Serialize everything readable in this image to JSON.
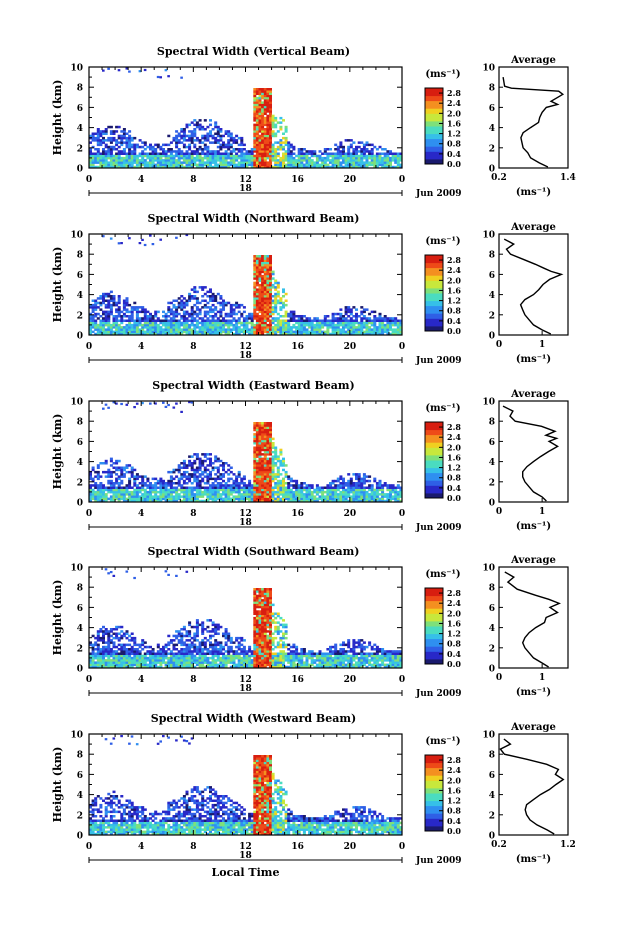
{
  "chart_data": [
    {
      "type": "heatmap",
      "title": "Spectral Width (Vertical Beam)",
      "xlabel": "",
      "ylabel": "Height (km)",
      "x_ticks": [
        "0",
        "4",
        "8",
        "12",
        "16",
        "20",
        "0"
      ],
      "y_ticks": [
        "0",
        "2",
        "4",
        "6",
        "8",
        "10"
      ],
      "xlim": [
        0,
        24
      ],
      "ylim": [
        0,
        10
      ],
      "date_label": "Jun 2009",
      "day_label": "18",
      "colorbar": {
        "unit": "(ms⁻¹)",
        "ticks": [
          "0.0",
          "0.4",
          "0.8",
          "1.2",
          "1.6",
          "2.0",
          "2.4",
          "2.8"
        ],
        "range": [
          0,
          3
        ]
      },
      "average_profile": {
        "title": "Average",
        "xlabel": "(ms⁻¹)",
        "x_ticks": [
          "0.2",
          "1.4"
        ],
        "xlim": [
          0.2,
          1.4
        ],
        "y_ticks": [
          "0",
          "2",
          "4",
          "6",
          "8",
          "10"
        ],
        "points": [
          [
            1.05,
            0.1
          ],
          [
            0.9,
            0.5
          ],
          [
            0.75,
            1.0
          ],
          [
            0.7,
            1.5
          ],
          [
            0.62,
            2.0
          ],
          [
            0.6,
            2.5
          ],
          [
            0.58,
            3.0
          ],
          [
            0.62,
            3.5
          ],
          [
            0.75,
            4.0
          ],
          [
            0.85,
            4.5
          ],
          [
            0.9,
            5.0
          ],
          [
            0.95,
            5.5
          ],
          [
            1.0,
            6.0
          ],
          [
            1.2,
            6.3
          ],
          [
            1.1,
            6.6
          ],
          [
            1.2,
            7.0
          ],
          [
            1.3,
            7.3
          ],
          [
            1.2,
            7.6
          ],
          [
            0.4,
            7.9
          ],
          [
            0.3,
            8.1
          ],
          [
            0.25,
            9.0
          ]
        ]
      }
    },
    {
      "type": "heatmap",
      "title": "Spectral Width (Northward Beam)",
      "xlabel": "",
      "ylabel": "Height (km)",
      "x_ticks": [
        "0",
        "4",
        "8",
        "12",
        "16",
        "20",
        "0"
      ],
      "y_ticks": [
        "0",
        "2",
        "4",
        "6",
        "8",
        "10"
      ],
      "xlim": [
        0,
        24
      ],
      "ylim": [
        0,
        10
      ],
      "date_label": "Jun 2009",
      "day_label": "18",
      "colorbar": {
        "unit": "(ms⁻¹)",
        "ticks": [
          "0.0",
          "0.4",
          "0.8",
          "1.2",
          "1.6",
          "2.0",
          "2.4",
          "2.8"
        ],
        "range": [
          0,
          3
        ]
      },
      "average_profile": {
        "title": "Average",
        "xlabel": "(ms⁻¹)",
        "x_ticks": [
          "0",
          "1"
        ],
        "xlim": [
          0,
          1.6
        ],
        "y_ticks": [
          "0",
          "2",
          "4",
          "6",
          "8",
          "10"
        ],
        "points": [
          [
            1.2,
            0.1
          ],
          [
            1.0,
            0.5
          ],
          [
            0.8,
            1.0
          ],
          [
            0.7,
            1.5
          ],
          [
            0.6,
            2.0
          ],
          [
            0.55,
            2.5
          ],
          [
            0.5,
            3.0
          ],
          [
            0.6,
            3.5
          ],
          [
            0.8,
            4.0
          ],
          [
            0.95,
            4.5
          ],
          [
            1.05,
            5.0
          ],
          [
            1.2,
            5.5
          ],
          [
            1.4,
            6.0
          ],
          [
            1.2,
            6.3
          ],
          [
            1.0,
            6.6
          ],
          [
            0.8,
            7.0
          ],
          [
            0.5,
            7.5
          ],
          [
            0.3,
            8.0
          ],
          [
            0.2,
            8.5
          ],
          [
            0.3,
            9.0
          ],
          [
            0.1,
            9.5
          ]
        ]
      }
    },
    {
      "type": "heatmap",
      "title": "Spectral Width (Eastward Beam)",
      "xlabel": "",
      "ylabel": "Height (km)",
      "x_ticks": [
        "0",
        "4",
        "8",
        "12",
        "16",
        "20",
        "0"
      ],
      "y_ticks": [
        "0",
        "2",
        "4",
        "6",
        "8",
        "10"
      ],
      "xlim": [
        0,
        24
      ],
      "ylim": [
        0,
        10
      ],
      "date_label": "Jun 2009",
      "day_label": "18",
      "colorbar": {
        "unit": "(ms⁻¹)",
        "ticks": [
          "0.0",
          "0.4",
          "0.8",
          "1.2",
          "1.6",
          "2.0",
          "2.4",
          "2.8"
        ],
        "range": [
          0,
          3
        ]
      },
      "average_profile": {
        "title": "Average",
        "xlabel": "(ms⁻¹)",
        "x_ticks": [
          "0",
          "1"
        ],
        "xlim": [
          0,
          1.6
        ],
        "y_ticks": [
          "0",
          "2",
          "4",
          "6",
          "8",
          "10"
        ],
        "points": [
          [
            1.1,
            0.1
          ],
          [
            1.0,
            0.5
          ],
          [
            0.8,
            1.0
          ],
          [
            0.7,
            1.5
          ],
          [
            0.6,
            2.0
          ],
          [
            0.55,
            2.5
          ],
          [
            0.55,
            3.0
          ],
          [
            0.65,
            3.5
          ],
          [
            0.8,
            4.0
          ],
          [
            1.0,
            4.5
          ],
          [
            1.1,
            5.0
          ],
          [
            1.3,
            5.5
          ],
          [
            1.2,
            6.0
          ],
          [
            1.4,
            6.3
          ],
          [
            1.1,
            6.6
          ],
          [
            1.3,
            7.0
          ],
          [
            1.0,
            7.5
          ],
          [
            0.4,
            8.0
          ],
          [
            0.2,
            8.5
          ],
          [
            0.3,
            9.0
          ],
          [
            0.1,
            9.5
          ]
        ]
      }
    },
    {
      "type": "heatmap",
      "title": "Spectral Width (Southward Beam)",
      "xlabel": "",
      "ylabel": "Height (km)",
      "x_ticks": [
        "0",
        "4",
        "8",
        "12",
        "16",
        "20",
        "0"
      ],
      "y_ticks": [
        "0",
        "2",
        "4",
        "6",
        "8",
        "10"
      ],
      "xlim": [
        0,
        24
      ],
      "ylim": [
        0,
        10
      ],
      "date_label": "Jun 2009",
      "day_label": "18",
      "colorbar": {
        "unit": "(ms⁻¹)",
        "ticks": [
          "0.0",
          "0.4",
          "0.8",
          "1.2",
          "1.6",
          "2.0",
          "2.4",
          "2.8"
        ],
        "range": [
          0,
          3
        ]
      },
      "average_profile": {
        "title": "Average",
        "xlabel": "(ms⁻¹)",
        "x_ticks": [
          "0",
          "1"
        ],
        "xlim": [
          0,
          1.6
        ],
        "y_ticks": [
          "0",
          "2",
          "4",
          "6",
          "8",
          "10"
        ],
        "points": [
          [
            1.15,
            0.1
          ],
          [
            1.0,
            0.5
          ],
          [
            0.8,
            1.0
          ],
          [
            0.7,
            1.5
          ],
          [
            0.6,
            2.0
          ],
          [
            0.55,
            2.5
          ],
          [
            0.6,
            3.0
          ],
          [
            0.7,
            3.5
          ],
          [
            0.85,
            4.0
          ],
          [
            1.0,
            4.5
          ],
          [
            1.1,
            5.0
          ],
          [
            1.3,
            5.5
          ],
          [
            1.2,
            6.0
          ],
          [
            1.4,
            6.4
          ],
          [
            1.1,
            6.8
          ],
          [
            0.9,
            7.2
          ],
          [
            0.4,
            7.8
          ],
          [
            0.2,
            8.5
          ],
          [
            0.3,
            9.0
          ],
          [
            0.1,
            9.5
          ]
        ]
      }
    },
    {
      "type": "heatmap",
      "title": "Spectral Width (Westward Beam)",
      "xlabel": "Local Time",
      "ylabel": "Height (km)",
      "x_ticks": [
        "0",
        "4",
        "8",
        "12",
        "16",
        "20",
        "0"
      ],
      "y_ticks": [
        "0",
        "2",
        "4",
        "6",
        "8",
        "10"
      ],
      "xlim": [
        0,
        24
      ],
      "ylim": [
        0,
        10
      ],
      "date_label": "Jun 2009",
      "day_label": "18",
      "colorbar": {
        "unit": "(ms⁻¹)",
        "ticks": [
          "0.0",
          "0.4",
          "0.8",
          "1.2",
          "1.6",
          "2.0",
          "2.4",
          "2.8"
        ],
        "range": [
          0,
          3
        ]
      },
      "average_profile": {
        "title": "Average",
        "xlabel": "(ms⁻¹)",
        "x_ticks": [
          "0.2",
          "1.2"
        ],
        "xlim": [
          0.2,
          1.2
        ],
        "y_ticks": [
          "0",
          "2",
          "4",
          "6",
          "8",
          "10"
        ],
        "points": [
          [
            1.0,
            0.1
          ],
          [
            0.9,
            0.5
          ],
          [
            0.75,
            1.0
          ],
          [
            0.65,
            1.5
          ],
          [
            0.6,
            2.0
          ],
          [
            0.58,
            2.5
          ],
          [
            0.6,
            3.0
          ],
          [
            0.7,
            3.5
          ],
          [
            0.8,
            4.0
          ],
          [
            0.9,
            4.5
          ],
          [
            1.0,
            5.0
          ],
          [
            1.1,
            5.5
          ],
          [
            1.0,
            6.0
          ],
          [
            1.1,
            6.5
          ],
          [
            0.9,
            7.0
          ],
          [
            0.6,
            7.5
          ],
          [
            0.3,
            8.0
          ],
          [
            0.25,
            8.5
          ],
          [
            0.4,
            9.0
          ],
          [
            0.3,
            9.5
          ]
        ]
      }
    }
  ]
}
